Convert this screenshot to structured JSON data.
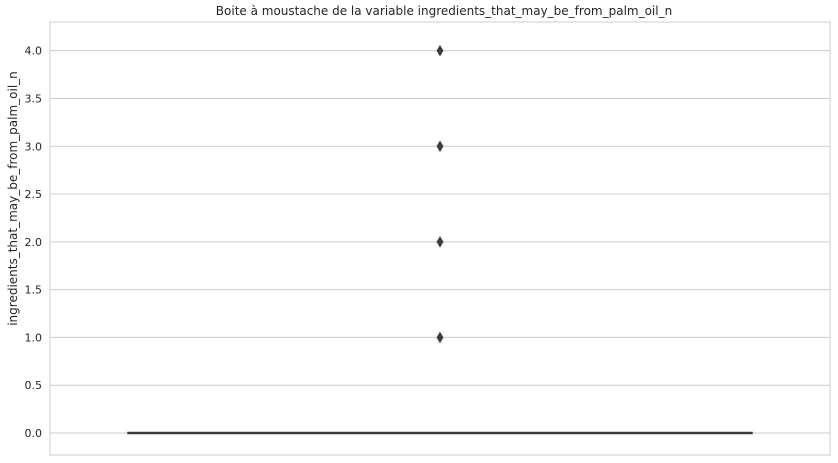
{
  "chart_data": {
    "type": "boxplot",
    "title": "Boite à moustache de la variable ingredients_that_may_be_from_palm_oil_n",
    "xlabel": "",
    "ylabel": "ingredients_that_may_be_from_palm_oil_n",
    "ylim": [
      -0.23,
      4.3
    ],
    "yticks": [
      0.0,
      0.5,
      1.0,
      1.5,
      2.0,
      2.5,
      3.0,
      3.5,
      4.0
    ],
    "ytick_labels": [
      "0.0",
      "0.5",
      "1.0",
      "1.5",
      "2.0",
      "2.5",
      "3.0",
      "3.5",
      "4.0"
    ],
    "grid": true,
    "box": {
      "q1": 0,
      "median": 0,
      "q3": 0,
      "whisker_low": 0,
      "whisker_high": 0
    },
    "outliers": [
      1,
      2,
      3,
      4
    ],
    "colors": {
      "grid": "#cccccc",
      "axes": "#cccccc",
      "box_line": "#3d3d3d",
      "outlier": "#3d3d3d",
      "text": "#262626"
    }
  }
}
